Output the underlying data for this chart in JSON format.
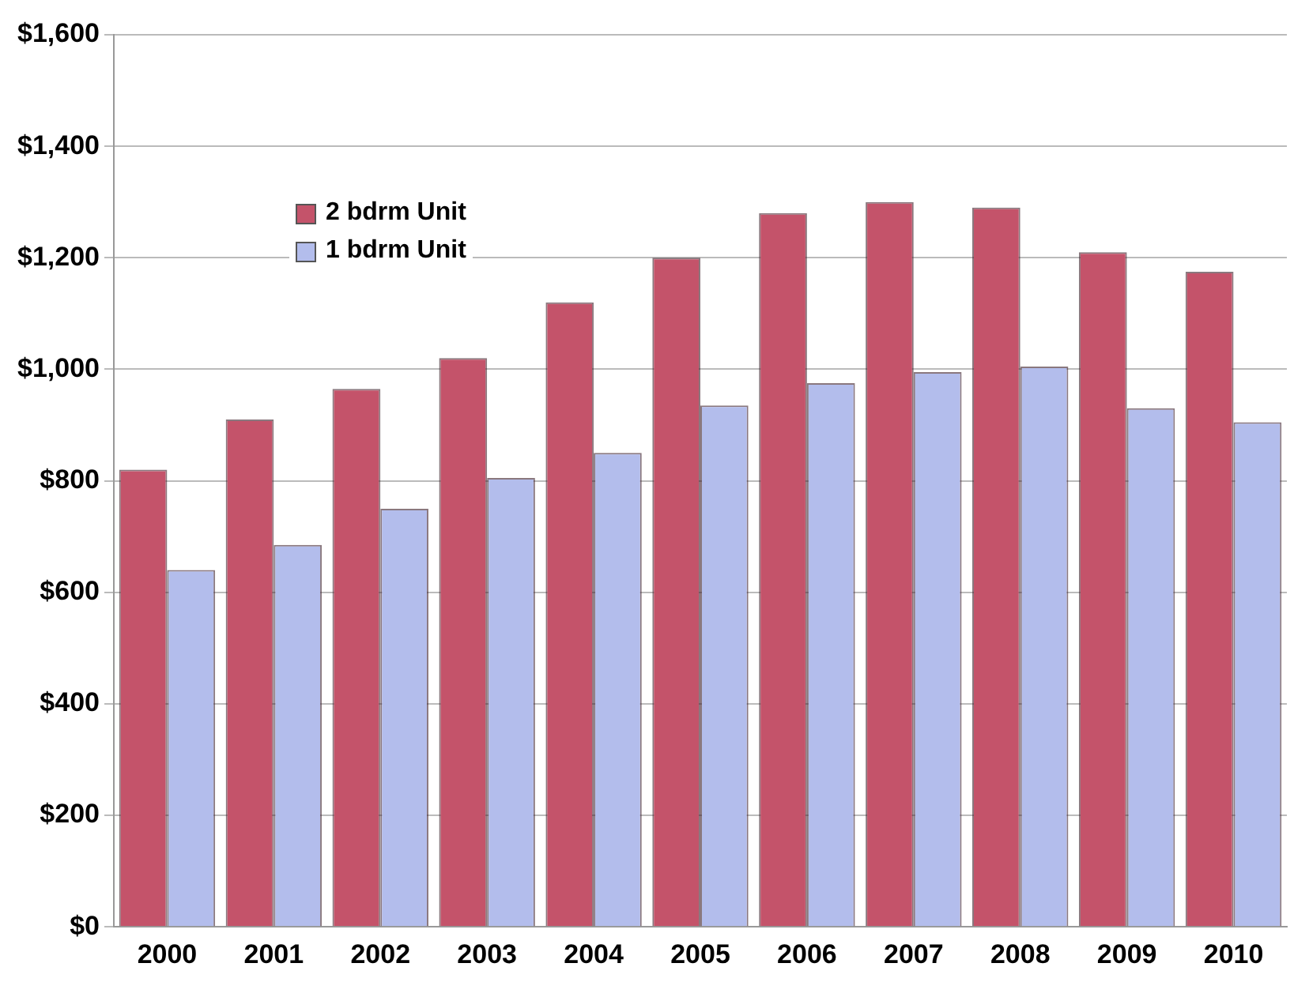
{
  "chart_data": {
    "type": "bar",
    "categories": [
      "2000",
      "2001",
      "2002",
      "2003",
      "2004",
      "2005",
      "2006",
      "2007",
      "2008",
      "2009",
      "2010"
    ],
    "series": [
      {
        "name": "2 bdrm Unit",
        "color": "#c4536a",
        "values": [
          820,
          910,
          965,
          1020,
          1120,
          1200,
          1280,
          1300,
          1290,
          1210,
          1175
        ]
      },
      {
        "name": "1 bdrm Unit",
        "color": "#b3bdec",
        "values": [
          640,
          685,
          750,
          805,
          850,
          935,
          975,
          995,
          1005,
          930,
          905
        ]
      }
    ],
    "ylim": [
      0,
      1600
    ],
    "yticks": [
      {
        "value": 0,
        "label": "$0"
      },
      {
        "value": 200,
        "label": "$200"
      },
      {
        "value": 400,
        "label": "$400"
      },
      {
        "value": 600,
        "label": "$600"
      },
      {
        "value": 800,
        "label": "$800"
      },
      {
        "value": 1000,
        "label": "$1,000"
      },
      {
        "value": 1200,
        "label": "$1,200"
      },
      {
        "value": 1400,
        "label": "$1,400"
      },
      {
        "value": 1600,
        "label": "$1,600"
      }
    ],
    "grid": "y",
    "legend": "top left"
  }
}
